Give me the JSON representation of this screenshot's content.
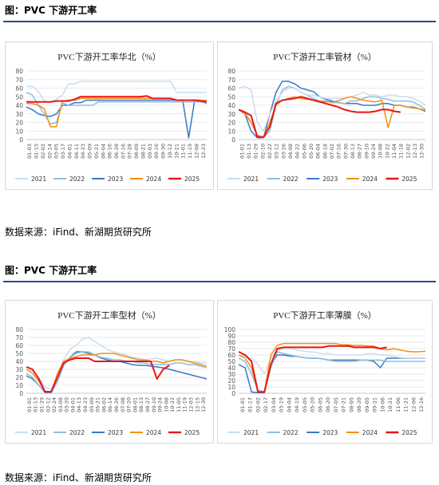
{
  "sections": [
    {
      "figure_title": "图：PVC 下游开工率",
      "source": "数据来源：iFind、新湖期货研究所"
    },
    {
      "figure_title": "图：PVC 下游开工率",
      "source": "数据来源：iFind、新湖期货研究所"
    }
  ],
  "legend_labels": [
    "2021",
    "2022",
    "2023",
    "2024",
    "2025"
  ],
  "series_colors": {
    "2021": "#c9ddf0",
    "2022": "#8fbde0",
    "2023": "#3b78c7",
    "2024": "#f29111",
    "2025": "#e8151b"
  },
  "chart_data": [
    {
      "type": "line",
      "title": "PVC下游开工率华北（%）",
      "ylim": [
        0,
        80
      ],
      "yticks": [
        0,
        10,
        20,
        30,
        40,
        50,
        60,
        70,
        80
      ],
      "xticks": [
        "01-03",
        "01-15",
        "01-27",
        "02-08",
        "02-20",
        "03-03",
        "03-15",
        "03-27",
        "04-08",
        "04-20",
        "05-02",
        "05-14",
        "05-26",
        "06-07",
        "06-19",
        "07-01",
        "07-13",
        "07-25",
        "08-06",
        "08-18",
        "08-30",
        "09-11",
        "09-23",
        "10-05",
        "10-17",
        "10-29",
        "11-10",
        "11-22",
        "12-04",
        "12-16",
        "12-28"
      ],
      "xticks_shown": [
        "01-03",
        "01-15",
        "02-02",
        "02-14",
        "03-05",
        "03-17",
        "04-01",
        "04-11",
        "04-23",
        "05-09",
        "05-21",
        "06-04",
        "06-16",
        "06-28",
        "07-16",
        "07-28",
        "08-09",
        "08-21",
        "09-03",
        "09-16",
        "09-30",
        "10-12",
        "10-21",
        "11-01",
        "11-19",
        "12-08",
        "12-23"
      ],
      "legend": "bottom",
      "grid": true,
      "series": [
        {
          "name": "2021",
          "values": [
            62,
            62,
            56,
            45,
            43,
            47,
            52,
            65,
            65,
            68,
            68,
            68,
            68,
            68,
            68,
            68,
            68,
            68,
            68,
            68,
            68,
            68,
            68,
            68,
            68,
            55,
            55,
            55,
            55,
            55,
            55
          ]
        },
        {
          "name": "2022",
          "values": [
            55,
            52,
            40,
            30,
            18,
            20,
            43,
            40,
            40,
            40,
            40,
            40,
            44,
            44,
            44,
            44,
            44,
            44,
            44,
            44,
            44,
            44,
            44,
            44,
            44,
            44,
            44,
            44,
            44,
            44,
            42
          ]
        },
        {
          "name": "2023",
          "values": [
            38,
            35,
            30,
            28,
            27,
            30,
            40,
            40,
            43,
            43,
            46,
            46,
            46,
            46,
            46,
            46,
            46,
            46,
            46,
            46,
            46,
            46,
            46,
            46,
            46,
            46,
            46,
            2,
            46,
            46,
            42
          ]
        },
        {
          "name": "2024",
          "values": [
            42,
            42,
            40,
            36,
            15,
            15,
            45,
            46,
            46,
            48,
            48,
            48,
            48,
            48,
            48,
            48,
            48,
            48,
            48,
            48,
            48,
            48,
            48,
            48,
            48,
            46,
            46,
            46,
            46,
            46,
            46
          ]
        },
        {
          "name": "2025",
          "values": [
            44,
            44,
            44,
            44,
            44,
            45,
            45,
            45,
            47,
            50,
            50,
            50,
            50,
            50,
            50,
            50,
            50,
            50,
            50,
            50,
            51,
            48,
            48,
            48,
            48,
            46,
            46,
            46,
            46,
            45,
            44
          ]
        }
      ]
    },
    {
      "type": "line",
      "title": "PVC下游开工率管材（%）",
      "ylim": [
        0,
        80
      ],
      "yticks": [
        0,
        10,
        20,
        30,
        40,
        50,
        60,
        70,
        80
      ],
      "xticks_shown": [
        "01-01",
        "01-13",
        "01-29",
        "02-10",
        "02-22",
        "03-12",
        "03-26",
        "04-08",
        "04-22",
        "05-06",
        "05-20",
        "06-04",
        "06-18",
        "07-02",
        "07-16",
        "07-30",
        "08-13",
        "08-27",
        "09-10",
        "09-24",
        "10-08",
        "10-22",
        "11-04",
        "11-18",
        "12-02",
        "12-13",
        "12-30"
      ],
      "legend": "bottom",
      "grid": true,
      "series": [
        {
          "name": "2021",
          "values": [
            60,
            62,
            58,
            20,
            10,
            30,
            45,
            55,
            60,
            60,
            55,
            52,
            52,
            50,
            48,
            48,
            48,
            48,
            50,
            52,
            55,
            52,
            52,
            50,
            52,
            52,
            50,
            50,
            48,
            45,
            40
          ]
        },
        {
          "name": "2022",
          "values": [
            35,
            32,
            20,
            5,
            2,
            10,
            40,
            58,
            62,
            60,
            55,
            52,
            48,
            45,
            45,
            43,
            43,
            42,
            45,
            45,
            48,
            50,
            50,
            48,
            47,
            45,
            45,
            45,
            44,
            40,
            35
          ]
        },
        {
          "name": "2023",
          "values": [
            35,
            30,
            10,
            2,
            2,
            30,
            55,
            68,
            68,
            65,
            60,
            58,
            56,
            50,
            47,
            45,
            43,
            42,
            42,
            42,
            40,
            40,
            40,
            42,
            42,
            40,
            40,
            38,
            38,
            36,
            33
          ]
        },
        {
          "name": "2024",
          "values": [
            35,
            30,
            20,
            5,
            3,
            20,
            40,
            46,
            48,
            50,
            48,
            47,
            46,
            45,
            44,
            44,
            45,
            48,
            50,
            48,
            46,
            45,
            44,
            46,
            14,
            40,
            40,
            38,
            37,
            36,
            34
          ]
        },
        {
          "name": "2025",
          "values": [
            35,
            32,
            28,
            3,
            3,
            15,
            42,
            46,
            47,
            48,
            50,
            48,
            46,
            44,
            42,
            40,
            38,
            35,
            33,
            32,
            32,
            32,
            33,
            35,
            35,
            33,
            32,
            null,
            null,
            null,
            null
          ]
        }
      ]
    },
    {
      "type": "line",
      "title": "PVC下游开工率型材（%）",
      "ylim": [
        0,
        80
      ],
      "yticks": [
        0,
        10,
        20,
        30,
        40,
        50,
        60,
        70,
        80
      ],
      "xticks_shown": [
        "01-01",
        "01-13",
        "01-29",
        "02-12",
        "02-24",
        "03-08",
        "03-20",
        "04-01",
        "04-13",
        "04-23",
        "05-09",
        "05-21",
        "06-02",
        "06-14",
        "06-26",
        "07-08",
        "07-20",
        "08-01",
        "08-13",
        "08-27",
        "09-10",
        "09-24",
        "10-08",
        "10-22",
        "11-05",
        "11-19",
        "12-03",
        "12-15",
        "12-30"
      ],
      "legend": "bottom",
      "grid": true,
      "series": [
        {
          "name": "2021",
          "values": [
            30,
            28,
            20,
            8,
            5,
            20,
            42,
            55,
            60,
            68,
            70,
            65,
            60,
            55,
            52,
            50,
            48,
            45,
            44,
            42,
            43,
            44,
            42,
            40,
            42,
            42,
            40,
            40,
            38,
            38
          ]
        },
        {
          "name": "2022",
          "values": [
            25,
            20,
            10,
            2,
            2,
            15,
            35,
            45,
            50,
            52,
            52,
            48,
            45,
            44,
            42,
            42,
            40,
            40,
            38,
            38,
            36,
            36,
            36,
            36,
            38,
            38,
            36,
            36,
            34,
            32
          ]
        },
        {
          "name": "2023",
          "values": [
            22,
            18,
            10,
            1,
            1,
            15,
            35,
            45,
            52,
            52,
            50,
            48,
            44,
            42,
            40,
            40,
            38,
            36,
            35,
            35,
            34,
            33,
            32,
            30,
            28,
            26,
            24,
            22,
            20,
            18
          ]
        },
        {
          "name": "2024",
          "values": [
            30,
            25,
            15,
            2,
            2,
            25,
            40,
            44,
            46,
            48,
            48,
            48,
            50,
            50,
            50,
            48,
            46,
            44,
            42,
            42,
            40,
            40,
            38,
            40,
            42,
            42,
            40,
            38,
            36,
            34
          ]
        },
        {
          "name": "2025",
          "values": [
            33,
            30,
            18,
            2,
            2,
            20,
            38,
            42,
            44,
            44,
            44,
            40,
            40,
            40,
            40,
            40,
            40,
            40,
            40,
            40,
            40,
            18,
            30,
            35,
            null,
            null,
            null,
            null,
            null,
            null
          ]
        }
      ]
    },
    {
      "type": "line",
      "title": "PVC下游开工率薄膜（%）",
      "ylim": [
        0,
        100
      ],
      "yticks": [
        0,
        10,
        20,
        30,
        40,
        50,
        60,
        70,
        80,
        90,
        100
      ],
      "xticks_shown": [
        "01-01",
        "01-17",
        "02-02",
        "02-17",
        "03-04",
        "03-19",
        "04-04",
        "04-19",
        "05-05",
        "05-20",
        "06-05",
        "06-20",
        "07-05",
        "07-21",
        "08-05",
        "08-20",
        "09-05",
        "09-21",
        "10-06",
        "10-21",
        "11-06",
        "11-21",
        "12-06",
        "12-16"
      ],
      "legend": "bottom",
      "grid": true,
      "series": [
        {
          "name": "2021",
          "values": [
            60,
            58,
            55,
            45,
            30,
            55,
            68,
            70,
            70,
            68,
            66,
            65,
            64,
            62,
            62,
            60,
            60,
            60,
            60,
            60,
            62,
            62,
            60,
            60,
            58,
            56,
            55,
            55,
            55,
            55
          ]
        },
        {
          "name": "2022",
          "values": [
            55,
            50,
            30,
            5,
            2,
            40,
            65,
            62,
            60,
            58,
            56,
            55,
            55,
            54,
            52,
            50,
            50,
            50,
            50,
            52,
            52,
            52,
            52,
            50,
            50,
            50,
            50,
            50,
            50,
            50
          ]
        },
        {
          "name": "2023",
          "values": [
            45,
            40,
            2,
            1,
            1,
            45,
            60,
            60,
            58,
            58,
            56,
            55,
            55,
            54,
            52,
            52,
            52,
            52,
            52,
            52,
            52,
            50,
            40,
            55,
            55,
            55,
            55,
            55,
            55,
            55
          ]
        },
        {
          "name": "2024",
          "values": [
            60,
            55,
            40,
            2,
            2,
            60,
            75,
            78,
            78,
            78,
            78,
            78,
            78,
            78,
            78,
            78,
            76,
            76,
            75,
            75,
            74,
            74,
            70,
            68,
            70,
            68,
            66,
            65,
            65,
            66
          ]
        },
        {
          "name": "2025",
          "values": [
            65,
            60,
            50,
            2,
            2,
            45,
            70,
            72,
            72,
            72,
            72,
            72,
            72,
            72,
            74,
            74,
            74,
            74,
            72,
            72,
            72,
            72,
            70,
            72,
            null,
            null,
            null,
            null,
            null,
            null
          ]
        }
      ]
    }
  ]
}
